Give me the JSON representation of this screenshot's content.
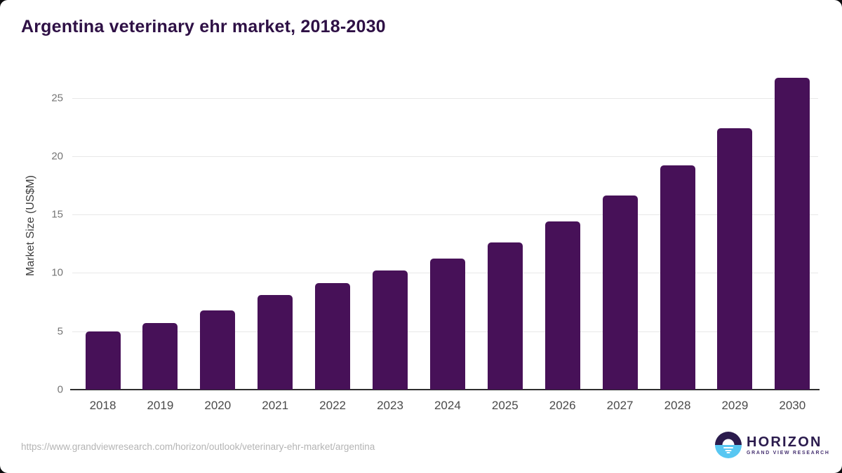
{
  "header": {
    "title": "Argentina veterinary ehr market, 2018-2030"
  },
  "chart_data": {
    "type": "bar",
    "title": "Argentina veterinary ehr market, 2018-2030",
    "categories": [
      "2018",
      "2019",
      "2020",
      "2021",
      "2022",
      "2023",
      "2024",
      "2025",
      "2026",
      "2027",
      "2028",
      "2029",
      "2030"
    ],
    "values": [
      5.0,
      5.7,
      6.8,
      8.1,
      9.1,
      10.2,
      11.2,
      12.6,
      14.4,
      16.6,
      19.2,
      22.4,
      26.7
    ],
    "xlabel": "",
    "ylabel": "Market Size (US$M)",
    "ylim": [
      0,
      27.5
    ],
    "yticks": [
      0,
      5,
      10,
      15,
      20,
      25
    ],
    "grid": true,
    "legend": false,
    "bar_color": "#471158"
  },
  "footer": {
    "source_url": "https://www.grandviewresearch.com/horizon/outlook/veterinary-ehr-market/argentina",
    "logo": {
      "brand": "HORIZON",
      "sub_brand": "GRAND VIEW RESEARCH"
    }
  },
  "colors": {
    "bar": "#471158",
    "title_text": "#2e1045",
    "logo_purple": "#2b1b4d",
    "logo_blue": "#58c7f2",
    "gridline": "#e8e8e8",
    "axis_line": "#2e2e2e"
  }
}
